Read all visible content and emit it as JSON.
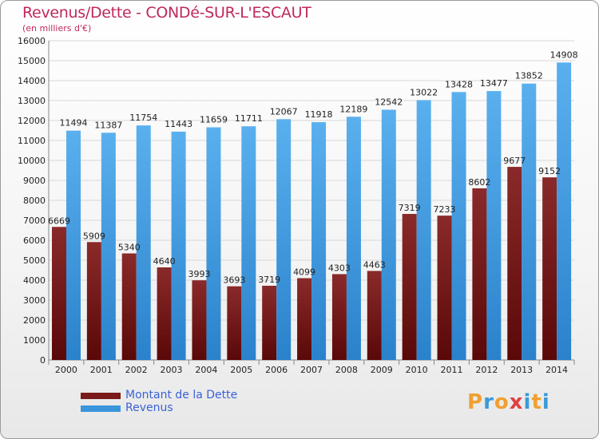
{
  "title": "Revenus/Dette - CONDé-SUR-L'ESCAUT",
  "subtitle": "(en milliers d'€)",
  "logo": [
    "P",
    "r",
    "o",
    "x",
    "i",
    "t",
    "i"
  ],
  "logo_colors": [
    "#f0a030",
    "#3a9ad8",
    "#f0a030",
    "#e04040",
    "#3a9ad8",
    "#f0a030",
    "#3a9ad8"
  ],
  "colors": {
    "debt": "#7a1a1a",
    "revenue": "#3a95dc",
    "title": "#c0285a",
    "legend_text": "#3a62d8"
  },
  "chart_data": {
    "type": "bar",
    "categories": [
      "2000",
      "2001",
      "2002",
      "2003",
      "2004",
      "2005",
      "2006",
      "2007",
      "2008",
      "2009",
      "2010",
      "2011",
      "2012",
      "2013",
      "2014"
    ],
    "series": [
      {
        "name": "Montant de la Dette",
        "values": [
          6669,
          5909,
          5340,
          4640,
          3993,
          3693,
          3719,
          4099,
          4303,
          4463,
          7319,
          7233,
          8602,
          9677,
          9152
        ],
        "labels": [
          "6669",
          "5909",
          "5340",
          "4640",
          "3993",
          "3693",
          "3719",
          "4099",
          "4303",
          "4463",
          "7319",
          "7233",
          "8602",
          "9677",
          "9152"
        ]
      },
      {
        "name": "Revenus",
        "values": [
          11494,
          11387,
          11754,
          11443,
          11659,
          11711,
          12067,
          11918,
          12189,
          12542,
          13022,
          13428,
          13477,
          13852,
          14908
        ],
        "labels": [
          "11494",
          "11387",
          "11754",
          "11443",
          "11659",
          "11711",
          "12067",
          "11918",
          "12189",
          "12542",
          "13022",
          "13428",
          "13477",
          "13852",
          "14908"
        ]
      }
    ],
    "ylim": [
      0,
      16000
    ],
    "yticks": [
      0,
      1000,
      2000,
      3000,
      4000,
      5000,
      6000,
      7000,
      8000,
      9000,
      10000,
      11000,
      12000,
      13000,
      14000,
      15000,
      16000
    ],
    "grid": true,
    "legend_position": "bottom-left"
  }
}
